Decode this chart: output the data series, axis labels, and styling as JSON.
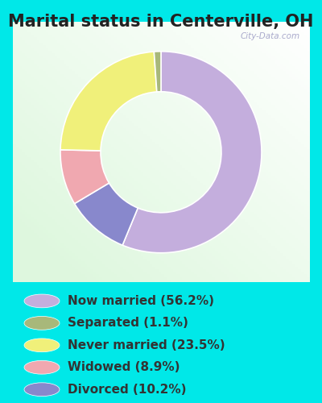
{
  "title": "Marital status in Centerville, OH",
  "slices": [
    56.2,
    10.2,
    8.9,
    23.5,
    1.1
  ],
  "colors": [
    "#c4aedd",
    "#8888cc",
    "#f0a8b0",
    "#f0f07a",
    "#a8b87a"
  ],
  "legend_labels": [
    "Now married (56.2%)",
    "Separated (1.1%)",
    "Never married (23.5%)",
    "Widowed (8.9%)",
    "Divorced (10.2%)"
  ],
  "legend_colors": [
    "#c4aedd",
    "#a8b87a",
    "#f0f07a",
    "#f0a8b0",
    "#8888cc"
  ],
  "bg_outer": "#00e8e8",
  "startangle": 90,
  "title_fontsize": 15,
  "legend_fontsize": 11,
  "watermark": "City-Data.com",
  "title_color": "#222222",
  "legend_text_color": "#333333"
}
